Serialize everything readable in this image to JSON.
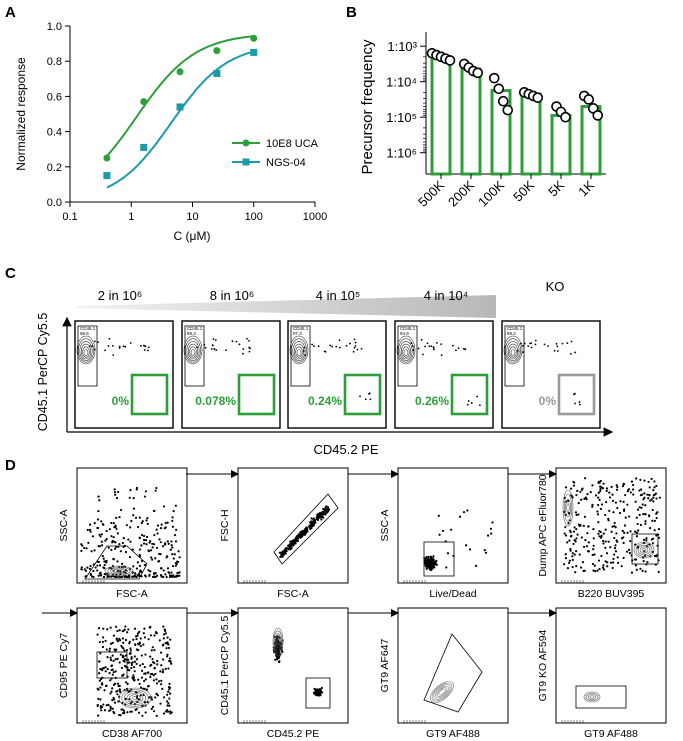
{
  "panels": {
    "A": "A",
    "B": "B",
    "C": "C",
    "D": "D"
  },
  "chart_data": [
    {
      "type": "scatter",
      "panel": "A",
      "xlabel": "C (μM)",
      "ylabel": "Normalized response",
      "xscale": "log",
      "xlim": [
        0.1,
        1000
      ],
      "ylim": [
        0.0,
        1.0
      ],
      "x_ticks": [
        "0.1",
        "1",
        "10",
        "100",
        "1000"
      ],
      "y_ticks": [
        "0.0",
        "0.2",
        "0.4",
        "0.6",
        "0.8",
        "1.0"
      ],
      "legend_position": "right",
      "series": [
        {
          "name": "10E8 UCA",
          "color": "#2e9e3a",
          "marker": "circle",
          "x": [
            0.4,
            1.6,
            6.25,
            25,
            100
          ],
          "y": [
            0.25,
            0.57,
            0.74,
            0.86,
            0.93
          ],
          "fit": {
            "bottom": 0.0,
            "top": 0.96,
            "ec50": 1.2,
            "hill": 0.9
          }
        },
        {
          "name": "NGS-04",
          "color": "#1b9aaa",
          "marker": "square",
          "x": [
            0.4,
            1.6,
            6.25,
            25,
            100
          ],
          "y": [
            0.15,
            0.31,
            0.54,
            0.73,
            0.85
          ],
          "fit": {
            "bottom": 0.0,
            "top": 0.9,
            "ec50": 4.5,
            "hill": 0.95
          }
        }
      ]
    },
    {
      "type": "bar",
      "panel": "B",
      "ylabel": "Precursor frequency",
      "yscale": "log_inverse",
      "y_ticks": [
        "1:10³",
        "1:10⁴",
        "1:10⁵",
        "1:10⁶"
      ],
      "y_tick_exponents": [
        3,
        4,
        5,
        6
      ],
      "ylim_exponent": [
        2.6,
        6.6
      ],
      "categories": [
        "500K",
        "200K",
        "100K",
        "50K",
        "5K",
        "1K"
      ],
      "bar_color": "#2e9e3a",
      "values_exponent": [
        3.3,
        3.65,
        4.25,
        4.35,
        4.95,
        4.7
      ],
      "points_exponent": [
        [
          3.2,
          3.25,
          3.3,
          3.35,
          3.4
        ],
        [
          3.5,
          3.6,
          3.7,
          3.75
        ],
        [
          3.9,
          4.2,
          4.55,
          4.8
        ],
        [
          4.3,
          4.35,
          4.4,
          4.45
        ],
        [
          4.7,
          4.85,
          5.0
        ],
        [
          4.4,
          4.5,
          4.75,
          4.95
        ]
      ]
    }
  ],
  "panelC": {
    "ylabel": "CD45.1 PerCP Cy5.5",
    "xlabel": "CD45.2 PE",
    "ratio_labels": [
      "2 in 10⁶",
      "8 in 10⁶",
      "4 in 10⁵",
      "4 in 10⁴",
      "KO"
    ],
    "gate_name": "CD45.1",
    "plots": [
      {
        "gate_value": "98.6",
        "pct": "0%",
        "color": "#2e9e3a"
      },
      {
        "gate_value": "98.3",
        "pct": "0.078%",
        "color": "#2e9e3a"
      },
      {
        "gate_value": "97.3",
        "pct": "0.24%",
        "color": "#2e9e3a"
      },
      {
        "gate_value": "94.9",
        "pct": "0.26%",
        "color": "#2e9e3a"
      },
      {
        "gate_value": "98.2",
        "pct": "0%",
        "color": "#999999"
      }
    ]
  },
  "panelD": {
    "plots": [
      {
        "y": "SSC-A",
        "x": "FSC-A"
      },
      {
        "y": "FSC-H",
        "x": "FSC-A"
      },
      {
        "y": "SSC-A",
        "x": "Live/Dead"
      },
      {
        "y": "Dump APC eFluor780",
        "x": "B220 BUV395"
      },
      {
        "y": "CD95 PE Cy7",
        "x": "CD38 AF700"
      },
      {
        "y": "CD45.1 PerCP Cy5.5",
        "x": "CD45.2 PE"
      },
      {
        "y": "GT9 AF647",
        "x": "GT9 AF488"
      },
      {
        "y": "GT9 KO AF594",
        "x": "GT9 AF488"
      }
    ]
  }
}
